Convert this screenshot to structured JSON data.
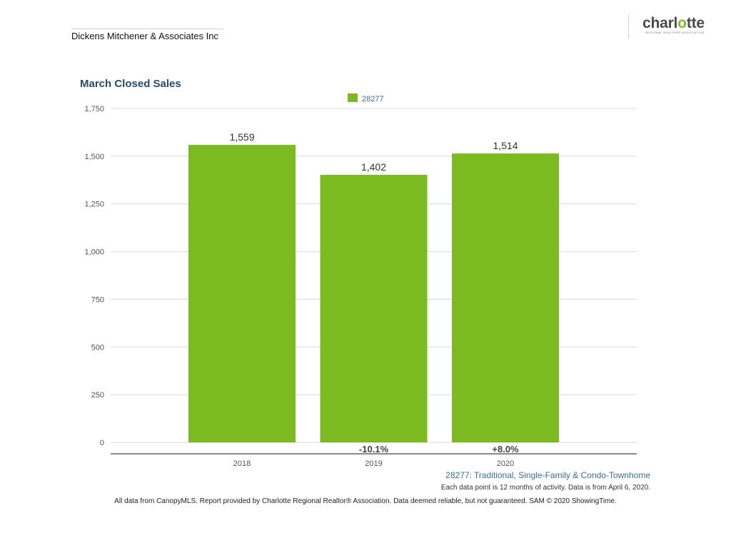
{
  "header": {
    "company": "Dickens Mitchener & Associates Inc",
    "logo_text": "charlotte",
    "logo_subtext": "REGIONAL REALTOR® ASSOCIATION"
  },
  "chart_data": {
    "type": "bar",
    "title": "March Closed Sales",
    "categories": [
      "2018",
      "2019",
      "2020"
    ],
    "series": [
      {
        "name": "28277",
        "values": [
          1559,
          1402,
          1514
        ],
        "color": "#7cba22"
      }
    ],
    "data_labels": [
      "1,559",
      "1,402",
      "1,514"
    ],
    "change_labels": [
      "",
      "-10.1%",
      "+8.0%"
    ],
    "ylim": [
      0,
      1750
    ],
    "yticks": [
      0,
      250,
      500,
      750,
      1000,
      1250,
      1500,
      1750
    ],
    "ytick_labels": [
      "0",
      "250",
      "500",
      "750",
      "1,000",
      "1,250",
      "1,500",
      "1,750"
    ],
    "grid": true,
    "legend_position": "top-center",
    "xlabel": "",
    "ylabel": ""
  },
  "notes": {
    "chart_note": "28277: Traditional, Single-Family & Condo-Townhome",
    "data_note": "Each data point is 12 months of activity. Data is from April 6, 2020.",
    "footer": "All data from CanopyMLS. Report provided by Charlotte Regional Realtor® Association. Data deemed reliable, but not guaranteed. SAM © 2020 ShowingTime."
  }
}
